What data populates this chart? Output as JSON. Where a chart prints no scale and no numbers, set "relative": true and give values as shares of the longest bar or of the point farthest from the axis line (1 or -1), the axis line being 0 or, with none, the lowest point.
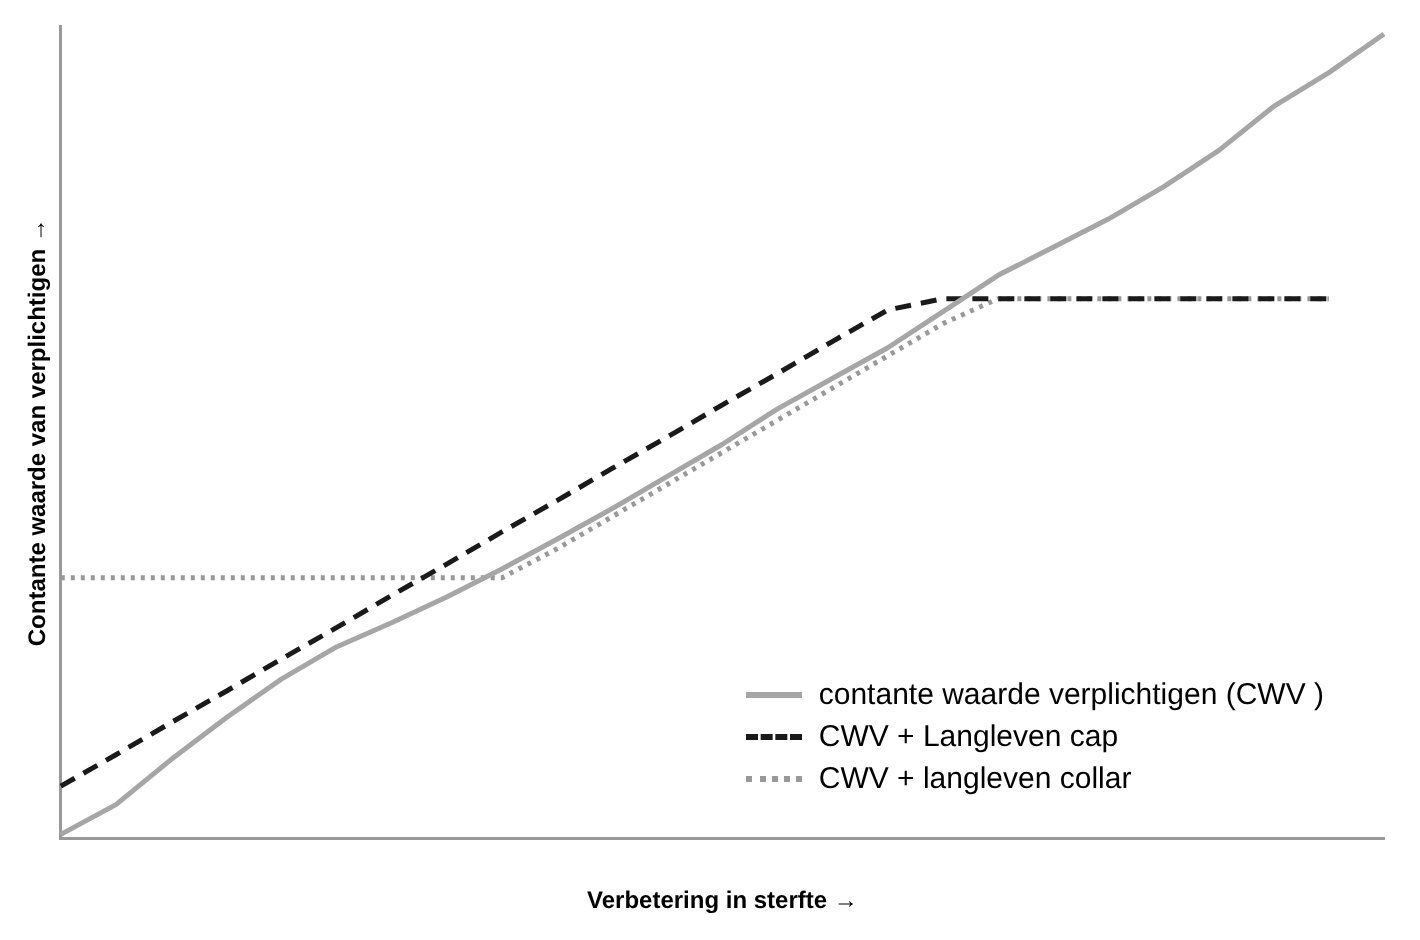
{
  "chart_data": {
    "type": "line",
    "relative": true,
    "xlabel": "Verbetering in sterfte →",
    "ylabel": "Contante waarde van verplichtigen →",
    "legend": "bottom right",
    "grid": false,
    "marker": "none",
    "categories": [
      null,
      null,
      null,
      null,
      null,
      null,
      null,
      null,
      null,
      null,
      null,
      null,
      null,
      null,
      null,
      null,
      null,
      null,
      null,
      null,
      null,
      null,
      null,
      null,
      null
    ],
    "series": [
      {
        "name": "contante waarde verplichtigen (CWV )",
        "color": "#a6a6a6",
        "line_style": "solid",
        "values": [
          0.005,
          0.042,
          0.098,
          0.15,
          0.198,
          0.238,
          0.268,
          0.3,
          0.335,
          0.372,
          0.41,
          0.45,
          0.49,
          0.534,
          0.572,
          0.61,
          0.655,
          0.7,
          0.735,
          0.77,
          0.81,
          0.855,
          0.91,
          0.952,
          1
        ]
      },
      {
        "name": "CWV + Langleven cap",
        "color": "#1a1a1a",
        "line_style": "dashed",
        "values": [
          0.065,
          0.104,
          0.144,
          0.183,
          0.223,
          0.262,
          0.302,
          0.341,
          0.381,
          0.42,
          0.46,
          0.499,
          0.539,
          0.578,
          0.618,
          0.657,
          0.671,
          0.671,
          0.671,
          0.671,
          0.671,
          0.671,
          0.671,
          0.671,
          null
        ]
      },
      {
        "name": "CWV + langleven collar",
        "color": "#999999",
        "line_style": "dotted",
        "values": [
          0.324,
          0.324,
          0.324,
          0.324,
          0.324,
          0.324,
          0.324,
          0.324,
          0.324,
          0.36,
          0.4,
          0.44,
          0.48,
          0.52,
          0.56,
          0.6,
          0.64,
          0.671,
          0.671,
          0.671,
          0.671,
          0.671,
          0.671,
          0.671,
          null
        ]
      }
    ]
  }
}
